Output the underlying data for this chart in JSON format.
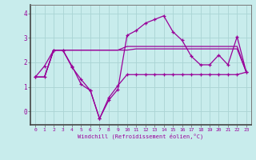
{
  "xlabel": "Windchill (Refroidissement éolien,°C)",
  "background_color": "#c8ecec",
  "grid_color": "#aad4d4",
  "line_color": "#990099",
  "x_ticks": [
    0,
    1,
    2,
    3,
    4,
    5,
    6,
    7,
    8,
    9,
    10,
    11,
    12,
    13,
    14,
    15,
    16,
    17,
    18,
    19,
    20,
    21,
    22,
    23
  ],
  "y_ticks": [
    0,
    1,
    2,
    3,
    4
  ],
  "ylim": [
    -0.55,
    4.35
  ],
  "xlim": [
    -0.5,
    23.5
  ],
  "line1_x": [
    0,
    1,
    2,
    3,
    4,
    5,
    6,
    7,
    8,
    9,
    10,
    11,
    12,
    13,
    14,
    15,
    16,
    17,
    18,
    19,
    20,
    21,
    22,
    23
  ],
  "line1_y": [
    1.4,
    1.85,
    2.5,
    2.5,
    1.8,
    1.3,
    0.85,
    -0.3,
    0.55,
    1.05,
    1.5,
    1.5,
    1.5,
    1.5,
    1.5,
    1.5,
    1.5,
    1.5,
    1.5,
    1.5,
    1.5,
    1.5,
    1.5,
    1.6
  ],
  "line2_x": [
    0,
    1,
    2,
    3,
    4,
    5,
    6,
    7,
    8,
    9,
    10,
    11,
    12,
    13,
    14,
    15,
    16,
    17,
    18,
    19,
    20,
    21,
    22,
    23
  ],
  "line2_y": [
    1.4,
    1.4,
    2.5,
    2.5,
    1.85,
    1.1,
    0.85,
    -0.3,
    0.45,
    0.9,
    3.1,
    3.3,
    3.6,
    3.75,
    3.9,
    3.25,
    2.9,
    2.25,
    1.9,
    1.9,
    2.3,
    1.9,
    3.05,
    1.6
  ],
  "line3_x": [
    0,
    1,
    2,
    3,
    4,
    5,
    6,
    7,
    8,
    9,
    10,
    11,
    12,
    13,
    14,
    15,
    16,
    17,
    18,
    19,
    20,
    21,
    22,
    23
  ],
  "line3_y": [
    1.4,
    1.4,
    2.5,
    2.5,
    2.5,
    2.5,
    2.5,
    2.5,
    2.5,
    2.5,
    2.5,
    2.55,
    2.55,
    2.55,
    2.55,
    2.55,
    2.55,
    2.55,
    2.55,
    2.55,
    2.55,
    2.55,
    2.55,
    1.6
  ],
  "line4_x": [
    0,
    1,
    2,
    3,
    4,
    5,
    6,
    7,
    8,
    9,
    10,
    11,
    12,
    13,
    14,
    15,
    16,
    17,
    18,
    19,
    20,
    21,
    22,
    23
  ],
  "line4_y": [
    1.4,
    1.4,
    2.5,
    2.5,
    2.5,
    2.5,
    2.5,
    2.5,
    2.5,
    2.5,
    2.65,
    2.65,
    2.65,
    2.65,
    2.65,
    2.65,
    2.65,
    2.65,
    2.65,
    2.65,
    2.65,
    2.65,
    2.65,
    1.6
  ]
}
